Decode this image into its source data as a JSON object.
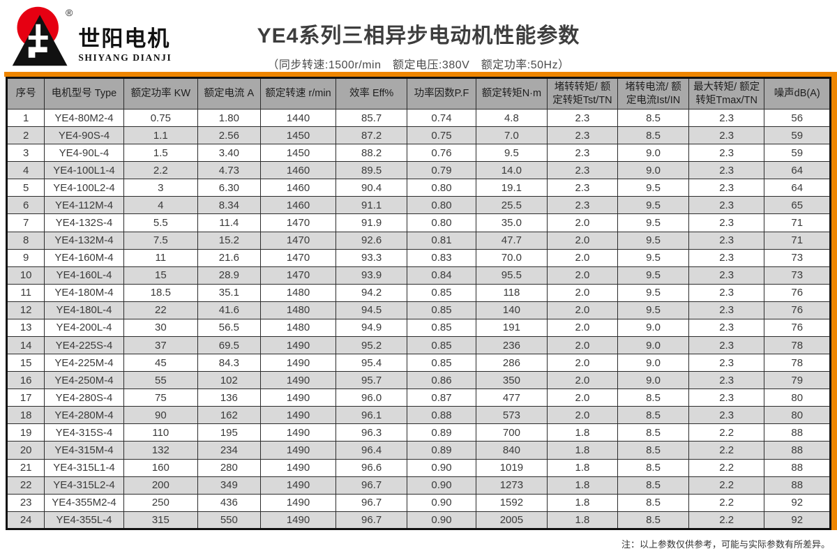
{
  "logo": {
    "brand_cn": "世阳电机",
    "brand_en": "SHIYANG DIANJI",
    "registered_mark": "®",
    "colors": {
      "red": "#e60012",
      "black": "#111111"
    }
  },
  "header": {
    "title": "YE4系列三相异步电动机性能参数",
    "subtitle": "（同步转速:1500r/min　额定电压:380V　额定功率:50Hz）"
  },
  "accent_color": "#ee8500",
  "table": {
    "columns": [
      "序号",
      "电机型号 Type",
      "额定功率 KW",
      "额定电流 A",
      "额定转速 r/min",
      "效率 Eff%",
      "功率因数P.F",
      "额定转矩N·m",
      "堵转转矩/ 额定转矩Tst/TN",
      "堵转电流/ 额定电流Ist/IN",
      "最大转矩/ 额定转矩Tmax/TN",
      "噪声dB(A)"
    ],
    "rows": [
      [
        "1",
        "YE4-80M2-4",
        "0.75",
        "1.80",
        "1440",
        "85.7",
        "0.74",
        "4.8",
        "2.3",
        "8.5",
        "2.3",
        "56"
      ],
      [
        "2",
        "YE4-90S-4",
        "1.1",
        "2.56",
        "1450",
        "87.2",
        "0.75",
        "7.0",
        "2.3",
        "8.5",
        "2.3",
        "59"
      ],
      [
        "3",
        "YE4-90L-4",
        "1.5",
        "3.40",
        "1450",
        "88.2",
        "0.76",
        "9.5",
        "2.3",
        "9.0",
        "2.3",
        "59"
      ],
      [
        "4",
        "YE4-100L1-4",
        "2.2",
        "4.73",
        "1460",
        "89.5",
        "0.79",
        "14.0",
        "2.3",
        "9.0",
        "2.3",
        "64"
      ],
      [
        "5",
        "YE4-100L2-4",
        "3",
        "6.30",
        "1460",
        "90.4",
        "0.80",
        "19.1",
        "2.3",
        "9.5",
        "2.3",
        "64"
      ],
      [
        "6",
        "YE4-112M-4",
        "4",
        "8.34",
        "1460",
        "91.1",
        "0.80",
        "25.5",
        "2.3",
        "9.5",
        "2.3",
        "65"
      ],
      [
        "7",
        "YE4-132S-4",
        "5.5",
        "11.4",
        "1470",
        "91.9",
        "0.80",
        "35.0",
        "2.0",
        "9.5",
        "2.3",
        "71"
      ],
      [
        "8",
        "YE4-132M-4",
        "7.5",
        "15.2",
        "1470",
        "92.6",
        "0.81",
        "47.7",
        "2.0",
        "9.5",
        "2.3",
        "71"
      ],
      [
        "9",
        "YE4-160M-4",
        "11",
        "21.6",
        "1470",
        "93.3",
        "0.83",
        "70.0",
        "2.0",
        "9.5",
        "2.3",
        "73"
      ],
      [
        "10",
        "YE4-160L-4",
        "15",
        "28.9",
        "1470",
        "93.9",
        "0.84",
        "95.5",
        "2.0",
        "9.5",
        "2.3",
        "73"
      ],
      [
        "11",
        "YE4-180M-4",
        "18.5",
        "35.1",
        "1480",
        "94.2",
        "0.85",
        "118",
        "2.0",
        "9.5",
        "2.3",
        "76"
      ],
      [
        "12",
        "YE4-180L-4",
        "22",
        "41.6",
        "1480",
        "94.5",
        "0.85",
        "140",
        "2.0",
        "9.5",
        "2.3",
        "76"
      ],
      [
        "13",
        "YE4-200L-4",
        "30",
        "56.5",
        "1480",
        "94.9",
        "0.85",
        "191",
        "2.0",
        "9.0",
        "2.3",
        "76"
      ],
      [
        "14",
        "YE4-225S-4",
        "37",
        "69.5",
        "1490",
        "95.2",
        "0.85",
        "236",
        "2.0",
        "9.0",
        "2.3",
        "78"
      ],
      [
        "15",
        "YE4-225M-4",
        "45",
        "84.3",
        "1490",
        "95.4",
        "0.85",
        "286",
        "2.0",
        "9.0",
        "2.3",
        "78"
      ],
      [
        "16",
        "YE4-250M-4",
        "55",
        "102",
        "1490",
        "95.7",
        "0.86",
        "350",
        "2.0",
        "9.0",
        "2.3",
        "79"
      ],
      [
        "17",
        "YE4-280S-4",
        "75",
        "136",
        "1490",
        "96.0",
        "0.87",
        "477",
        "2.0",
        "8.5",
        "2.3",
        "80"
      ],
      [
        "18",
        "YE4-280M-4",
        "90",
        "162",
        "1490",
        "96.1",
        "0.88",
        "573",
        "2.0",
        "8.5",
        "2.3",
        "80"
      ],
      [
        "19",
        "YE4-315S-4",
        "110",
        "195",
        "1490",
        "96.3",
        "0.89",
        "700",
        "1.8",
        "8.5",
        "2.2",
        "88"
      ],
      [
        "20",
        "YE4-315M-4",
        "132",
        "234",
        "1490",
        "96.4",
        "0.89",
        "840",
        "1.8",
        "8.5",
        "2.2",
        "88"
      ],
      [
        "21",
        "YE4-315L1-4",
        "160",
        "280",
        "1490",
        "96.6",
        "0.90",
        "1019",
        "1.8",
        "8.5",
        "2.2",
        "88"
      ],
      [
        "22",
        "YE4-315L2-4",
        "200",
        "349",
        "1490",
        "96.7",
        "0.90",
        "1273",
        "1.8",
        "8.5",
        "2.2",
        "88"
      ],
      [
        "23",
        "YE4-355M2-4",
        "250",
        "436",
        "1490",
        "96.7",
        "0.90",
        "1592",
        "1.8",
        "8.5",
        "2.2",
        "92"
      ],
      [
        "24",
        "YE4-355L-4",
        "315",
        "550",
        "1490",
        "96.7",
        "0.90",
        "2005",
        "1.8",
        "8.5",
        "2.2",
        "92"
      ]
    ]
  },
  "footnote": "注：以上参数仅供参考，可能与实际参数有所差异。"
}
